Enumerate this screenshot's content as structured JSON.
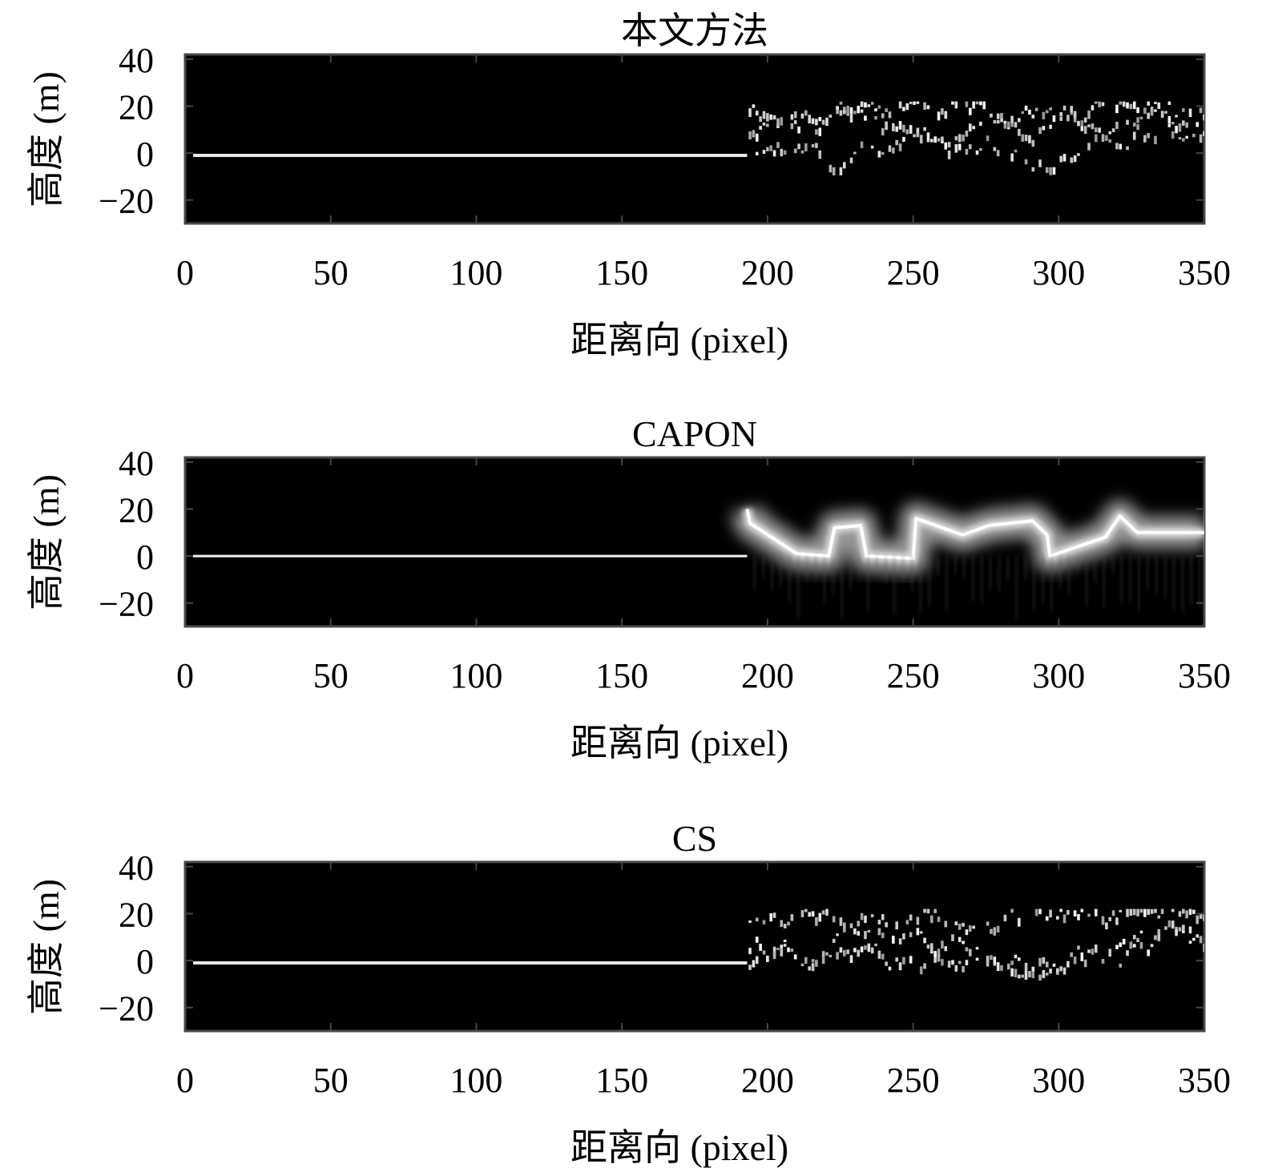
{
  "chart_data": [
    {
      "type": "heatmap",
      "title": "本文方法",
      "xlabel": "距离向 (pixel)",
      "ylabel": "高度 (m)",
      "xlim": [
        0,
        350
      ],
      "ylim": [
        -30,
        42
      ],
      "xticks": [
        "0",
        "50",
        "100",
        "150",
        "200",
        "250",
        "300",
        "350"
      ],
      "yticks": [
        "40",
        "20",
        "0",
        "−20"
      ],
      "colormap": "gray",
      "ground_line": {
        "x": [
          0,
          193
        ],
        "height": -1
      },
      "scatter_region": {
        "x": [
          193,
          350
        ],
        "height_range": [
          -6,
          22
        ]
      },
      "style": "sparse"
    },
    {
      "type": "heatmap",
      "title": "CAPON",
      "xlabel": "距离向 (pixel)",
      "ylabel": "高度 (m)",
      "xlim": [
        0,
        350
      ],
      "ylim": [
        -30,
        42
      ],
      "xticks": [
        "0",
        "50",
        "100",
        "150",
        "200",
        "250",
        "300",
        "350"
      ],
      "yticks": [
        "40",
        "20",
        "0",
        "−20"
      ],
      "colormap": "gray",
      "ground_line": {
        "x": [
          0,
          193
        ],
        "height": 0
      },
      "ridge": {
        "x": [
          193,
          194,
          210,
          221,
          223,
          232,
          234,
          250,
          251,
          267,
          276,
          291,
          296,
          297,
          316,
          321,
          327,
          350
        ],
        "height": [
          20,
          14,
          1,
          0,
          12,
          13,
          0,
          -1,
          16,
          9,
          13,
          15,
          9,
          0,
          8,
          17,
          10,
          10
        ]
      },
      "style": "blurred"
    },
    {
      "type": "heatmap",
      "title": "CS",
      "xlabel": "距离向 (pixel)",
      "ylabel": "高度 (m)",
      "xlim": [
        0,
        350
      ],
      "ylim": [
        -30,
        42
      ],
      "xticks": [
        "0",
        "50",
        "100",
        "150",
        "200",
        "250",
        "300",
        "350"
      ],
      "yticks": [
        "40",
        "20",
        "0",
        "−20"
      ],
      "colormap": "gray",
      "ground_line": {
        "x": [
          0,
          193
        ],
        "height": -1
      },
      "scatter_region": {
        "x": [
          193,
          350
        ],
        "height_range": [
          -6,
          22
        ]
      },
      "style": "sparse"
    }
  ]
}
